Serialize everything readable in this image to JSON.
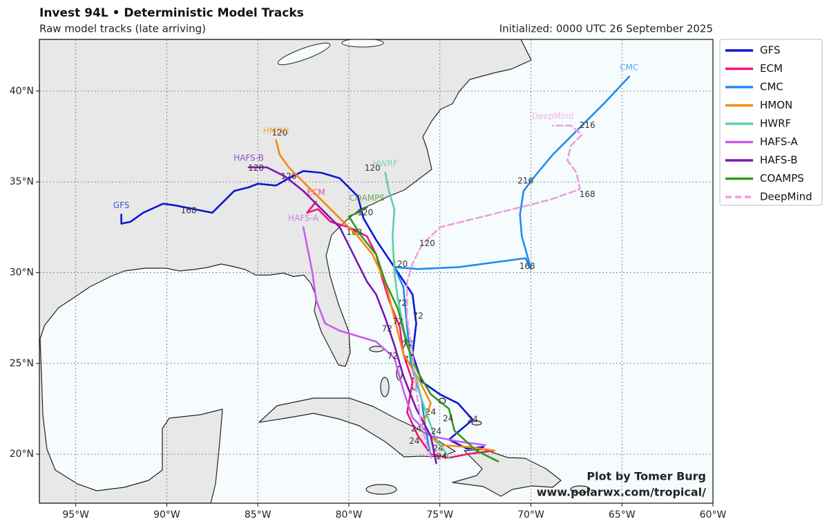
{
  "chart_data": {
    "type": "track-map",
    "title": "Invest 94L • Deterministic Model Tracks",
    "subtitle": "Raw model tracks (late arriving)",
    "initialized": "Initialized: 0000 UTC 26 September 2025",
    "credit": [
      "Plot by Tomer Burg",
      "www.polarwx.com/tropical/"
    ],
    "xlim": [
      -97,
      -60
    ],
    "ylim": [
      17.3,
      42.85
    ],
    "xticks": [
      {
        "value": -95,
        "label": "95°W"
      },
      {
        "value": -90,
        "label": "90°W"
      },
      {
        "value": -85,
        "label": "85°W"
      },
      {
        "value": -80,
        "label": "80°W"
      },
      {
        "value": -75,
        "label": "75°W"
      },
      {
        "value": -70,
        "label": "70°W"
      },
      {
        "value": -65,
        "label": "65°W"
      },
      {
        "value": -60,
        "label": "60°W"
      }
    ],
    "yticks": [
      {
        "value": 20,
        "label": "20°N"
      },
      {
        "value": 25,
        "label": "25°N"
      },
      {
        "value": 30,
        "label": "30°N"
      },
      {
        "value": 35,
        "label": "35°N"
      },
      {
        "value": 40,
        "label": "40°N"
      }
    ],
    "grid": true,
    "legend": "outside-right",
    "series": [
      {
        "name": "GFS",
        "color": "#0a14d8",
        "dashed": false,
        "lon": [
          -72.6,
          -73.5,
          -74.5,
          -73.2,
          -74,
          -75,
          -76,
          -76.5,
          -76.3,
          -76.5,
          -77.5,
          -78.5,
          -79.2,
          -79.5,
          -80.5,
          -81.5,
          -82.5,
          -83.3,
          -84,
          -85,
          -85.5,
          -86.3,
          -87,
          -87.5,
          -88.5,
          -89.5,
          -90.2,
          -91.3,
          -92,
          -92.5,
          -92.5
        ],
        "lat": [
          20.4,
          20.3,
          20.8,
          21.9,
          22.8,
          23.3,
          24.0,
          25.5,
          27.2,
          28.8,
          30.3,
          31.8,
          33,
          34.2,
          35.2,
          35.5,
          35.6,
          35.2,
          34.8,
          34.9,
          34.7,
          34.5,
          33.8,
          33.3,
          33.5,
          33.7,
          33.8,
          33.3,
          32.8,
          32.7,
          33.2
        ],
        "hour_labels": [
          {
            "hour": 168,
            "lon": -88.8,
            "lat": 33.4
          },
          {
            "hour": 120,
            "lon": -83.3,
            "lat": 35.3
          },
          {
            "hour": 72,
            "lon": -76.2,
            "lat": 27.6
          },
          {
            "hour": 24,
            "lon": -73.2,
            "lat": 21.9
          }
        ]
      },
      {
        "name": "ECM",
        "color": "#f0147c",
        "dashed": false,
        "lon": [
          -72,
          -73.5,
          -74.5,
          -75.5,
          -76.2,
          -76.8,
          -76.5,
          -77,
          -77.2,
          -77.8,
          -78.2,
          -78.5,
          -79,
          -80,
          -81,
          -81.7,
          -82.3,
          -81.8
        ],
        "lat": [
          20.2,
          20.0,
          19.8,
          20.0,
          21.0,
          22.3,
          24,
          25.5,
          27,
          28.5,
          29.8,
          31,
          32,
          32.5,
          32.8,
          33.5,
          33.3,
          33.9
        ],
        "hour_labels": [
          {
            "hour": 168,
            "lon": -79.7,
            "lat": 32.2
          },
          {
            "hour": 72,
            "lon": -76.7,
            "lat": 25.2
          },
          {
            "hour": 24,
            "lon": -75.1,
            "lat": 20.3
          }
        ]
      },
      {
        "name": "CMC",
        "color": "#1e8cf0",
        "dashed": false,
        "lon": [
          -75.5,
          -75.8,
          -76,
          -76.6,
          -76.8,
          -77,
          -77.5,
          -76.2,
          -74,
          -72.5,
          -71,
          -70.3,
          -70,
          -70.3,
          -70.5,
          -70.6,
          -70.4,
          -69.8,
          -68.8,
          -67.5,
          -66,
          -64.6
        ],
        "lat": [
          19.8,
          21.5,
          23,
          25,
          27,
          29.2,
          30.3,
          30.2,
          30.3,
          30.5,
          30.7,
          30.8,
          30.2,
          31.3,
          32,
          33.2,
          34.5,
          35.3,
          36.5,
          37.8,
          39.3,
          40.8
        ],
        "hour_labels": [
          {
            "hour": 216,
            "lon": -70.3,
            "lat": 35.05
          },
          {
            "hour": 168,
            "lon": -70.2,
            "lat": 30.35
          },
          {
            "hour": 120,
            "lon": -77.2,
            "lat": 30.45
          },
          {
            "hour": 72,
            "lon": -76.8,
            "lat": 26
          },
          {
            "hour": 24,
            "lon": -75.5,
            "lat": 22.3
          }
        ]
      },
      {
        "name": "HMON",
        "color": "#f5890a",
        "dashed": false,
        "lon": [
          -72,
          -73.5,
          -75,
          -76,
          -75.5,
          -76.2,
          -77,
          -77.5,
          -78,
          -78.7,
          -79.5,
          -80.5,
          -81.5,
          -82.5,
          -83.3,
          -83.8,
          -84
        ],
        "lat": [
          20.2,
          20.4,
          20.5,
          21.5,
          22.8,
          24.2,
          25.5,
          27.5,
          29.5,
          31,
          32,
          33,
          34,
          35,
          35.8,
          36.5,
          37.3
        ],
        "hour_labels": [
          {
            "hour": 120,
            "lon": -83.8,
            "lat": 37.7
          },
          {
            "hour": 72,
            "lon": -77.1,
            "lat": 28.3
          },
          {
            "hour": 24,
            "lon": -76.4,
            "lat": 20.7
          }
        ]
      },
      {
        "name": "HWRF",
        "color": "#5ccfa8",
        "dashed": false,
        "lon": [
          -74.5,
          -75.3,
          -76,
          -76.5,
          -77,
          -77.3,
          -77.5,
          -77.6,
          -77.5,
          -77.8,
          -78
        ],
        "lat": [
          19.8,
          21,
          23,
          25,
          27,
          28.5,
          30,
          32,
          33.5,
          34.5,
          35.5
        ],
        "hour_labels": [
          {
            "hour": 120,
            "lon": -78.7,
            "lat": 35.75
          },
          {
            "hour": 72,
            "lon": -77.3,
            "lat": 27.3
          },
          {
            "hour": 24,
            "lon": -76.3,
            "lat": 21.4
          }
        ]
      },
      {
        "name": "HAFS-A",
        "color": "#c65cf0",
        "dashed": false,
        "lon": [
          -72.5,
          -74,
          -75.5,
          -76.5,
          -77,
          -77.5,
          -78.5,
          -79.5,
          -80.5,
          -81.3,
          -81.8,
          -82,
          -82.3,
          -82.5
        ],
        "lat": [
          20.5,
          20.7,
          21,
          22,
          23.5,
          25.3,
          26.2,
          26.5,
          26.8,
          27.2,
          28.5,
          30,
          31.5,
          32.5
        ],
        "hour_labels": [
          {
            "hour": 72,
            "lon": -77.6,
            "lat": 25.4
          },
          {
            "hour": 24,
            "lon": -75.2,
            "lat": 21.25
          }
        ]
      },
      {
        "name": "HAFS-B",
        "color": "#7a14b4",
        "dashed": false,
        "lon": [
          -75.2,
          -75.5,
          -76.3,
          -77,
          -77.5,
          -78,
          -78.5,
          -79,
          -79.5,
          -80,
          -80.5,
          -81.5,
          -82.5,
          -83.5,
          -84.5,
          -85.5
        ],
        "lat": [
          19.5,
          21,
          22.5,
          24.3,
          26,
          27.5,
          28.8,
          29.5,
          30.5,
          31.5,
          32.5,
          33.5,
          34.5,
          35.3,
          35.8,
          35.8
        ],
        "hour_labels": [
          {
            "hour": 120,
            "lon": -85.1,
            "lat": 35.75
          },
          {
            "hour": 72,
            "lon": -77.9,
            "lat": 26.9
          },
          {
            "hour": 24,
            "lon": -74.9,
            "lat": 19.85
          }
        ]
      },
      {
        "name": "COAMPS",
        "color": "#32961e",
        "dashed": false,
        "lon": [
          -71.8,
          -73,
          -74.2,
          -74.5,
          -75.5,
          -76.2,
          -76.8,
          -77.3,
          -78,
          -78.5,
          -79.3,
          -80,
          -79.5,
          -79
        ],
        "lat": [
          19.6,
          20.2,
          21.3,
          22.5,
          23.3,
          24.5,
          26,
          28,
          29.5,
          31,
          32,
          33.1,
          33.3,
          33.6
        ],
        "hour_labels": [
          {
            "hour": 120,
            "lon": -79.1,
            "lat": 33.3
          },
          {
            "hour": 72,
            "lon": -76.75,
            "lat": 26.1
          },
          {
            "hour": 24,
            "lon": -74.55,
            "lat": 21.95
          }
        ]
      },
      {
        "name": "DeepMind",
        "color": "#f09ce0",
        "dashed": true,
        "lon": [
          -75.5,
          -76,
          -76.3,
          -76.5,
          -76.8,
          -76.8,
          -76.5,
          -76,
          -75,
          -73,
          -71,
          -69,
          -67.3,
          -67.5,
          -68,
          -67.8,
          -67.2,
          -67.8,
          -68.8
        ],
        "lat": [
          19.8,
          21.5,
          23.5,
          25.5,
          27.5,
          29.5,
          30.5,
          31.5,
          32.5,
          33,
          33.5,
          34,
          34.6,
          35.5,
          36.2,
          37,
          37.6,
          38.1,
          38.1
        ],
        "hour_labels": [
          {
            "hour": 216,
            "lon": -66.9,
            "lat": 38.1
          },
          {
            "hour": 168,
            "lon": -66.9,
            "lat": 34.3
          },
          {
            "hour": 120,
            "lon": -75.7,
            "lat": 31.6
          }
        ]
      }
    ]
  }
}
